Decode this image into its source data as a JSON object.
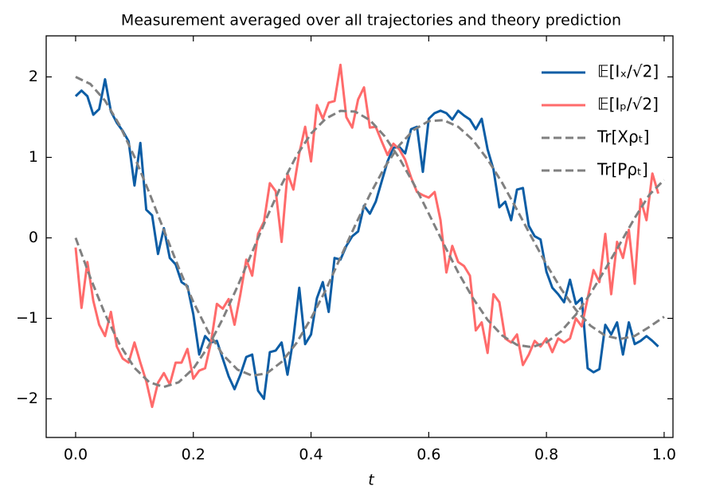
{
  "chart_data": {
    "type": "line",
    "title": "Measurement averaged over all trajectories and theory prediction",
    "x_label": "t",
    "xlim": [
      -0.05,
      1.015
    ],
    "ylim": [
      -2.48,
      2.51
    ],
    "xticks": [
      {
        "value": 0,
        "label": "0.0"
      },
      0.2,
      0.4,
      0.6,
      0.8,
      {
        "value": 1,
        "label": "1.0"
      }
    ],
    "yticks": [
      {
        "value": -2,
        "label": "−2"
      },
      {
        "value": -1,
        "label": "−1"
      },
      0,
      1,
      2
    ],
    "legend": "upper right",
    "series": [
      {
        "name": "𝔼[Iₓ/√2]",
        "color": "#0c5da5",
        "dashed": false,
        "x": [
          0,
          0.01,
          0.02,
          0.03,
          0.04,
          0.05,
          0.06,
          0.07,
          0.08,
          0.09,
          0.1,
          0.11,
          0.12,
          0.13,
          0.14,
          0.15,
          0.16,
          0.17,
          0.18,
          0.19,
          0.2,
          0.21,
          0.22,
          0.23,
          0.24,
          0.25,
          0.26,
          0.27,
          0.28,
          0.29,
          0.3,
          0.31,
          0.32,
          0.33,
          0.34,
          0.35,
          0.36,
          0.37,
          0.38,
          0.39,
          0.4,
          0.41,
          0.42,
          0.43,
          0.44,
          0.45,
          0.46,
          0.47,
          0.48,
          0.49,
          0.5,
          0.51,
          0.52,
          0.53,
          0.54,
          0.55,
          0.56,
          0.57,
          0.58,
          0.59,
          0.6,
          0.61,
          0.62,
          0.63,
          0.64,
          0.65,
          0.66,
          0.67,
          0.68,
          0.69,
          0.7,
          0.71,
          0.72,
          0.73,
          0.74,
          0.75,
          0.76,
          0.77,
          0.78,
          0.79,
          0.8,
          0.81,
          0.82,
          0.83,
          0.84,
          0.85,
          0.86,
          0.87,
          0.88,
          0.89,
          0.9,
          0.91,
          0.92,
          0.93,
          0.94,
          0.95,
          0.96,
          0.97,
          0.98,
          0.99
        ],
        "values": [
          1.76,
          1.83,
          1.76,
          1.53,
          1.6,
          1.97,
          1.57,
          1.43,
          1.33,
          1.2,
          0.65,
          1.18,
          0.35,
          0.28,
          -0.2,
          0.12,
          -0.25,
          -0.33,
          -0.55,
          -0.6,
          -0.95,
          -1.45,
          -1.22,
          -1.3,
          -1.28,
          -1.5,
          -1.72,
          -1.88,
          -1.7,
          -1.48,
          -1.45,
          -1.9,
          -2.0,
          -1.42,
          -1.4,
          -1.3,
          -1.7,
          -1.25,
          -0.62,
          -1.32,
          -1.2,
          -0.75,
          -0.55,
          -0.92,
          -0.25,
          -0.27,
          -0.1,
          0.02,
          0.08,
          0.4,
          0.3,
          0.45,
          0.7,
          0.95,
          1.12,
          1.13,
          1.05,
          1.35,
          1.38,
          0.82,
          1.48,
          1.55,
          1.58,
          1.55,
          1.47,
          1.58,
          1.52,
          1.47,
          1.35,
          1.48,
          1.1,
          0.85,
          0.38,
          0.45,
          0.22,
          0.6,
          0.62,
          0.15,
          0.02,
          -0.02,
          -0.42,
          -0.62,
          -0.7,
          -0.8,
          -0.52,
          -0.82,
          -0.75,
          -1.62,
          -1.67,
          -1.63,
          -1.08,
          -1.2,
          -1.05,
          -1.45,
          -1.05,
          -1.32,
          -1.28,
          -1.22,
          -1.28,
          -1.35
        ]
      },
      {
        "name": "𝔼[Iₚ/√2]",
        "color": "#ff6b6b",
        "dashed": false,
        "x": [
          0,
          0.01,
          0.02,
          0.03,
          0.04,
          0.05,
          0.06,
          0.07,
          0.08,
          0.09,
          0.1,
          0.11,
          0.12,
          0.13,
          0.14,
          0.15,
          0.16,
          0.17,
          0.18,
          0.19,
          0.2,
          0.21,
          0.22,
          0.23,
          0.24,
          0.25,
          0.26,
          0.27,
          0.28,
          0.29,
          0.3,
          0.31,
          0.32,
          0.33,
          0.34,
          0.35,
          0.36,
          0.37,
          0.38,
          0.39,
          0.4,
          0.41,
          0.42,
          0.43,
          0.44,
          0.45,
          0.46,
          0.47,
          0.48,
          0.49,
          0.5,
          0.51,
          0.52,
          0.53,
          0.54,
          0.55,
          0.56,
          0.57,
          0.58,
          0.59,
          0.6,
          0.61,
          0.62,
          0.63,
          0.64,
          0.65,
          0.66,
          0.67,
          0.68,
          0.69,
          0.7,
          0.71,
          0.72,
          0.73,
          0.74,
          0.75,
          0.76,
          0.77,
          0.78,
          0.79,
          0.8,
          0.81,
          0.82,
          0.83,
          0.84,
          0.85,
          0.86,
          0.87,
          0.88,
          0.89,
          0.9,
          0.91,
          0.92,
          0.93,
          0.94,
          0.95,
          0.96,
          0.97,
          0.98,
          0.99
        ],
        "values": [
          -0.12,
          -0.87,
          -0.3,
          -0.78,
          -1.08,
          -1.22,
          -0.92,
          -1.35,
          -1.5,
          -1.55,
          -1.3,
          -1.55,
          -1.78,
          -2.1,
          -1.8,
          -1.68,
          -1.82,
          -1.55,
          -1.55,
          -1.38,
          -1.75,
          -1.65,
          -1.62,
          -1.3,
          -0.82,
          -0.88,
          -0.76,
          -1.08,
          -0.7,
          -0.27,
          -0.47,
          0.05,
          0.2,
          0.68,
          0.58,
          -0.05,
          0.8,
          0.6,
          1.05,
          1.38,
          0.95,
          1.65,
          1.48,
          1.68,
          1.7,
          2.15,
          1.5,
          1.37,
          1.72,
          1.87,
          1.37,
          1.38,
          1.2,
          1.03,
          1.17,
          1.1,
          0.97,
          0.75,
          0.57,
          0.53,
          0.5,
          0.57,
          0.22,
          -0.43,
          -0.1,
          -0.3,
          -0.35,
          -0.47,
          -1.15,
          -1.05,
          -1.43,
          -0.7,
          -0.8,
          -1.25,
          -1.3,
          -1.2,
          -1.58,
          -1.45,
          -1.28,
          -1.35,
          -1.25,
          -1.42,
          -1.25,
          -1.3,
          -1.25,
          -1.0,
          -1.1,
          -0.75,
          -0.4,
          -0.55,
          0.05,
          -0.7,
          -0.05,
          -0.25,
          0.1,
          -0.57,
          0.48,
          0.22,
          0.8,
          0.55
        ]
      },
      {
        "name": "Tr[Xρₜ]",
        "color": "#808080",
        "dashed": true,
        "x": [
          0,
          0.025,
          0.05,
          0.075,
          0.1,
          0.125,
          0.15,
          0.175,
          0.2,
          0.225,
          0.25,
          0.275,
          0.3,
          0.325,
          0.35,
          0.375,
          0.4,
          0.425,
          0.45,
          0.475,
          0.5,
          0.525,
          0.55,
          0.575,
          0.6,
          0.625,
          0.65,
          0.675,
          0.7,
          0.725,
          0.75,
          0.775,
          0.8,
          0.825,
          0.85,
          0.875,
          0.9,
          0.925,
          0.95,
          0.975,
          1
        ],
        "values": [
          2.0,
          1.912,
          1.705,
          1.396,
          1.006,
          0.564,
          0.095,
          -0.368,
          -0.796,
          -1.163,
          -1.451,
          -1.637,
          -1.712,
          -1.683,
          -1.541,
          -1.31,
          -1.0,
          -0.648,
          -0.243,
          0.156,
          0.537,
          0.875,
          1.151,
          1.344,
          1.451,
          1.463,
          1.38,
          1.216,
          0.974,
          0.681,
          0.348,
          0.005,
          -0.33,
          -0.636,
          -0.895,
          -1.092,
          -1.215,
          -1.257,
          -1.219,
          -1.106,
          -0.98
        ]
      },
      {
        "name": "Tr[Pρₜ]",
        "color": "#808080",
        "dashed": true,
        "x": [
          0,
          0.025,
          0.05,
          0.075,
          0.1,
          0.125,
          0.15,
          0.175,
          0.2,
          0.225,
          0.25,
          0.275,
          0.3,
          0.325,
          0.35,
          0.375,
          0.4,
          0.425,
          0.45,
          0.475,
          0.5,
          0.525,
          0.55,
          0.575,
          0.6,
          0.625,
          0.65,
          0.675,
          0.7,
          0.725,
          0.75,
          0.775,
          0.8,
          0.825,
          0.85,
          0.875,
          0.9,
          0.925,
          0.95,
          0.975,
          1
        ],
        "values": [
          0,
          -0.494,
          -0.948,
          -1.327,
          -1.615,
          -1.793,
          -1.853,
          -1.795,
          -1.625,
          -1.356,
          -1.006,
          -0.605,
          -0.176,
          0.255,
          0.66,
          1.016,
          1.296,
          1.481,
          1.578,
          1.569,
          1.463,
          1.264,
          0.99,
          0.665,
          0.302,
          -0.07,
          -0.429,
          -0.748,
          -1.019,
          -1.214,
          -1.33,
          -1.358,
          -1.299,
          -1.161,
          -0.954,
          -0.691,
          -0.389,
          -0.073,
          0.248,
          0.537,
          0.72
        ]
      }
    ]
  }
}
